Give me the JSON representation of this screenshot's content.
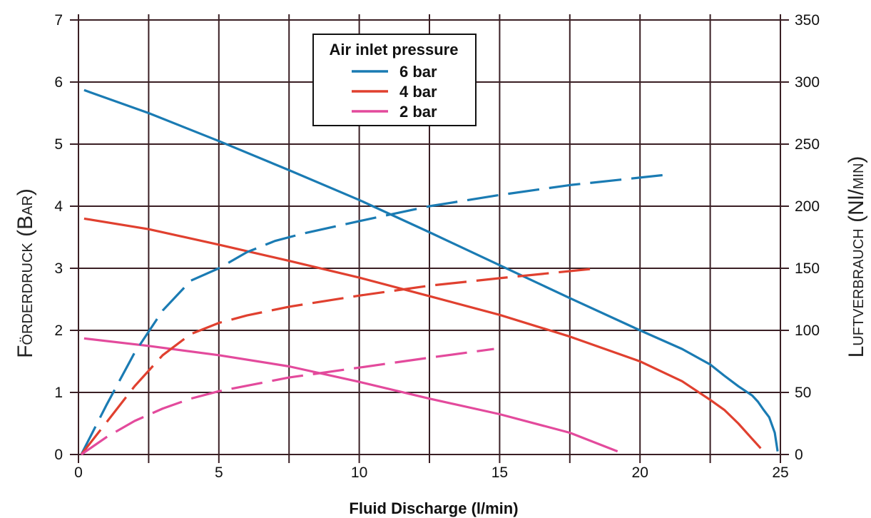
{
  "chart_data": {
    "type": "line",
    "xlabel": "Fluid Discharge (l/min)",
    "ylabel_left": {
      "main": "Förderdruck (Bar)",
      "parts": [
        [
          "F",
          30
        ],
        [
          "ÖRDERDRUCK",
          20
        ],
        [
          " (B",
          30
        ],
        [
          "AR",
          20
        ],
        [
          ")",
          30
        ]
      ]
    },
    "ylabel_right": {
      "main": "Luftverbrauch (Nl/min)",
      "parts": [
        [
          "L",
          30
        ],
        [
          "UFTVERBRAUCH",
          20
        ],
        [
          " (N",
          30
        ],
        [
          "l/",
          30
        ],
        [
          "MIN",
          20
        ],
        [
          ")",
          30
        ]
      ]
    },
    "xlim": [
      0,
      25
    ],
    "ylim_left": [
      0,
      7
    ],
    "ylim_right": [
      0,
      350
    ],
    "x_ticks": [
      "0",
      "5",
      "10",
      "15",
      "20",
      "25"
    ],
    "x_tick_values": [
      0,
      5,
      10,
      15,
      20,
      25
    ],
    "x_grid_values": [
      0,
      2.5,
      5,
      7.5,
      10,
      12.5,
      15,
      17.5,
      20,
      22.5,
      25
    ],
    "y_left_ticks": [
      "0",
      "1",
      "2",
      "3",
      "4",
      "5",
      "6",
      "7"
    ],
    "y_left_tick_values": [
      0,
      1,
      2,
      3,
      4,
      5,
      6,
      7
    ],
    "y_right_ticks": [
      "0",
      "50",
      "100",
      "150",
      "200",
      "250",
      "300",
      "350"
    ],
    "y_right_tick_values": [
      0,
      50,
      100,
      150,
      200,
      250,
      300,
      350
    ],
    "grid": true,
    "legend": {
      "title": "Air inlet pressure",
      "placement": "top-center",
      "entries": [
        "6 bar",
        "4 bar",
        "2 bar"
      ]
    },
    "series": [
      {
        "name": "6 bar",
        "kind": "pressure",
        "axis": "left",
        "style": "solid",
        "color": "#1a7bb3",
        "x": [
          0.2,
          2.5,
          5,
          7.5,
          10,
          12.5,
          15,
          17.5,
          20,
          21.5,
          22.5,
          23,
          23.5,
          24,
          24.2,
          24.4,
          24.6,
          24.8,
          24.9
        ],
        "y": [
          5.87,
          5.5,
          5.05,
          4.58,
          4.1,
          3.58,
          3.05,
          2.52,
          2.0,
          1.7,
          1.45,
          1.27,
          1.1,
          0.95,
          0.85,
          0.72,
          0.6,
          0.35,
          0.05
        ]
      },
      {
        "name": "4 bar",
        "kind": "pressure",
        "axis": "left",
        "style": "solid",
        "color": "#e0402f",
        "x": [
          0.2,
          2.5,
          5,
          7.5,
          10,
          12.5,
          15,
          17.5,
          20,
          21.5,
          22.5,
          23,
          23.5,
          24,
          24.3
        ],
        "y": [
          3.8,
          3.63,
          3.38,
          3.12,
          2.85,
          2.55,
          2.25,
          1.9,
          1.5,
          1.18,
          0.88,
          0.72,
          0.5,
          0.25,
          0.1
        ]
      },
      {
        "name": "2 bar",
        "kind": "pressure",
        "axis": "left",
        "style": "solid",
        "color": "#e34a9c",
        "x": [
          0.2,
          2.5,
          5,
          7.5,
          10,
          12.5,
          15,
          17.5,
          19.2
        ],
        "y": [
          1.87,
          1.75,
          1.6,
          1.42,
          1.17,
          0.9,
          0.65,
          0.35,
          0.05
        ]
      },
      {
        "name": "6 bar",
        "kind": "air consumption",
        "axis": "right",
        "style": "dashed",
        "color": "#1a7bb3",
        "x": [
          0.1,
          1,
          2,
          3,
          4,
          5,
          6,
          7,
          8,
          10,
          12.5,
          15,
          17.5,
          20.8
        ],
        "y": [
          0,
          40,
          82,
          116,
          140,
          150,
          163,
          172,
          178,
          188,
          200,
          209,
          217,
          225
        ]
      },
      {
        "name": "4 bar",
        "kind": "air consumption",
        "axis": "right",
        "style": "dashed",
        "color": "#e0402f",
        "x": [
          0.1,
          1,
          2,
          3,
          4,
          5,
          6,
          7.5,
          10,
          12.5,
          15,
          18.5
        ],
        "y": [
          0,
          26,
          55,
          80,
          97,
          106,
          112,
          119,
          128,
          136,
          142,
          150
        ]
      },
      {
        "name": "2 bar",
        "kind": "air consumption",
        "axis": "right",
        "style": "dashed",
        "color": "#e34a9c",
        "x": [
          0.1,
          1,
          2,
          3,
          4,
          5,
          7.5,
          10,
          12.5,
          14.8
        ],
        "y": [
          0,
          14,
          27,
          37,
          45,
          51,
          62,
          70,
          78,
          85
        ]
      }
    ]
  }
}
